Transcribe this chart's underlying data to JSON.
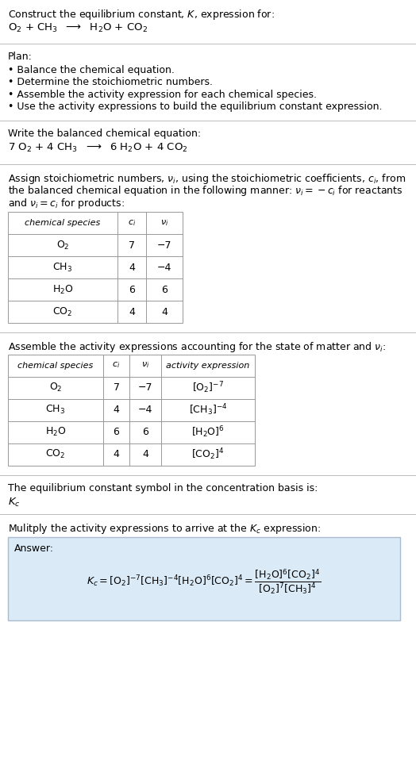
{
  "title_line1": "Construct the equilibrium constant, $K$, expression for:",
  "title_line2_parts": [
    "O",
    "2",
    " + CH",
    "3",
    "  ⟶  H",
    "2",
    "O + CO",
    "2"
  ],
  "plan_header": "Plan:",
  "plan_bullets": [
    "• Balance the chemical equation.",
    "• Determine the stoichiometric numbers.",
    "• Assemble the activity expression for each chemical species.",
    "• Use the activity expressions to build the equilibrium constant expression."
  ],
  "balanced_header": "Write the balanced chemical equation:",
  "balanced_eq": "7 O_2 + 4 CH_3  ⟶  6 H_2O + 4 CO_2",
  "stoich_intro_lines": [
    "Assign stoichiometric numbers, $\\nu_i$, using the stoichiometric coefficients, $c_i$, from",
    "the balanced chemical equation in the following manner: $\\nu_i = -c_i$ for reactants",
    "and $\\nu_i = c_i$ for products:"
  ],
  "table1_headers": [
    "chemical species",
    "$c_i$",
    "$\\nu_i$"
  ],
  "table1_rows": [
    [
      "O$_2$",
      "7",
      "−7"
    ],
    [
      "CH$_3$",
      "4",
      "−4"
    ],
    [
      "H$_2$O",
      "6",
      "6"
    ],
    [
      "CO$_2$",
      "4",
      "4"
    ]
  ],
  "activity_intro": "Assemble the activity expressions accounting for the state of matter and $\\nu_i$:",
  "table2_headers": [
    "chemical species",
    "$c_i$",
    "$\\nu_i$",
    "activity expression"
  ],
  "table2_rows": [
    [
      "O$_2$",
      "7",
      "−7",
      "[O$_2$]$^{-7}$"
    ],
    [
      "CH$_3$",
      "4",
      "−4",
      "[CH$_3$]$^{-4}$"
    ],
    [
      "H$_2$O",
      "6",
      "6",
      "[H$_2$O]$^6$"
    ],
    [
      "CO$_2$",
      "4",
      "4",
      "[CO$_2$]$^4$"
    ]
  ],
  "Kc_intro": "The equilibrium constant symbol in the concentration basis is:",
  "Kc_symbol": "$K_c$",
  "multiply_intro": "Mulitply the activity expressions to arrive at the $K_c$ expression:",
  "answer_box_color": "#daeaf7",
  "answer_label": "Answer:",
  "bg_color": "#ffffff",
  "text_color": "#000000",
  "sep_color": "#bbbbbb"
}
